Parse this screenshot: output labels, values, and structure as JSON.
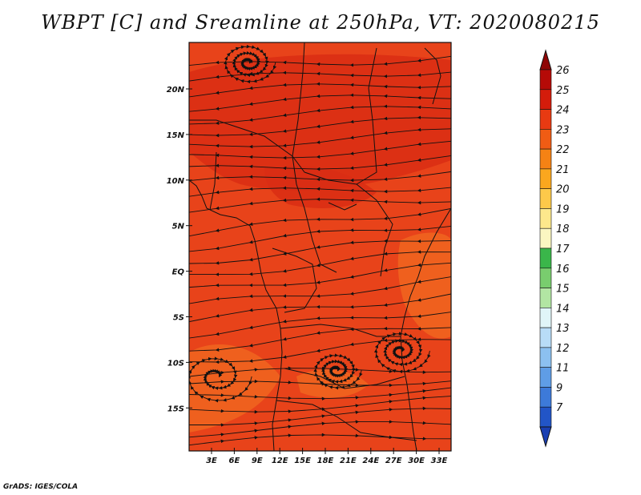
{
  "title": "WBPT [C] and Sreamline at 250hPa, VT: 2020080215",
  "credit": "GrADS: IGES/COLA",
  "map": {
    "lat_labels": [
      "20N",
      "15N",
      "10N",
      "5N",
      "EQ",
      "5S",
      "10S",
      "15S"
    ],
    "lon_labels": [
      "3E",
      "6E",
      "9E",
      "12E",
      "15E",
      "18E",
      "21E",
      "24E",
      "27E",
      "30E",
      "33E"
    ],
    "fill_color": "#e8431a",
    "land_shade": "#d92d14",
    "cool_shade": "#f0641f"
  },
  "colorbar": {
    "labels": [
      "26",
      "25",
      "24",
      "23",
      "22",
      "21",
      "20",
      "19",
      "18",
      "17",
      "16",
      "15",
      "14",
      "13",
      "12",
      "11",
      "9",
      "7"
    ],
    "colors": [
      "#b50a07",
      "#d41c0b",
      "#e83a12",
      "#f05c14",
      "#f58214",
      "#fba71e",
      "#fdc94a",
      "#fde88c",
      "#fbf6c1",
      "#3ab64a",
      "#79cd6e",
      "#b2e5a3",
      "#e0f5f8",
      "#b8dcf7",
      "#8cc0f0",
      "#5f9de6",
      "#3d7ad9",
      "#2255c7"
    ],
    "top_color": "#8f0606",
    "bottom_color": "#1a3fb2"
  }
}
